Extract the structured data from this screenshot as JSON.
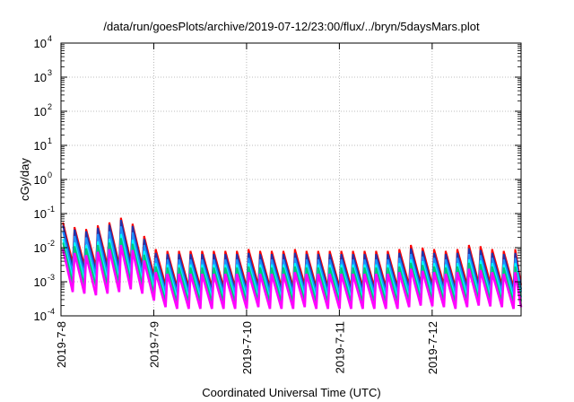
{
  "chart_data": {
    "type": "line",
    "title": "/data/run/goesPlots/archive/2019-07-12/23:00/flux/../bryn/5daysMars.plot",
    "xlabel": "Coordinated Universal Time (UTC)",
    "ylabel": "cGy/day",
    "xscale": "time",
    "yscale": "log",
    "xlim": [
      "2019-07-08T00:00",
      "2019-07-12T23:00"
    ],
    "ylim": [
      0.0001,
      10000
    ],
    "grid": true,
    "legend": "none",
    "x_ticks": [
      {
        "date": "2019-07-08",
        "label": "2019-7-8"
      },
      {
        "date": "2019-07-09",
        "label": "2019-7-9"
      },
      {
        "date": "2019-07-10",
        "label": "2019-7-10"
      },
      {
        "date": "2019-07-11",
        "label": "2019-7-11"
      },
      {
        "date": "2019-07-12",
        "label": "2019-7-12"
      }
    ],
    "y_ticks": [
      {
        "value": 0.0001,
        "base": "10",
        "exp": "-4"
      },
      {
        "value": 0.001,
        "base": "10",
        "exp": "-3"
      },
      {
        "value": 0.01,
        "base": "10",
        "exp": "-2"
      },
      {
        "value": 0.1,
        "base": "10",
        "exp": "-1"
      },
      {
        "value": 1,
        "base": "10",
        "exp": "0"
      },
      {
        "value": 10,
        "base": "10",
        "exp": "1"
      },
      {
        "value": 100,
        "base": "10",
        "exp": "2"
      },
      {
        "value": 1000,
        "base": "10",
        "exp": "3"
      },
      {
        "value": 10000,
        "base": "10",
        "exp": "4"
      }
    ],
    "cycle_hours": 3,
    "cycle_peak_times": [
      "2019-07-08T00:30",
      "2019-07-08T03:30",
      "2019-07-08T06:30",
      "2019-07-08T09:30",
      "2019-07-08T12:30",
      "2019-07-08T15:30",
      "2019-07-08T18:30",
      "2019-07-08T21:30",
      "2019-07-09T00:30",
      "2019-07-09T03:30",
      "2019-07-09T06:30",
      "2019-07-09T09:30",
      "2019-07-09T12:30",
      "2019-07-09T15:30",
      "2019-07-09T18:30",
      "2019-07-09T21:30",
      "2019-07-10T00:30",
      "2019-07-10T03:30",
      "2019-07-10T06:30",
      "2019-07-10T09:30",
      "2019-07-10T12:30",
      "2019-07-10T15:30",
      "2019-07-10T18:30",
      "2019-07-10T21:30",
      "2019-07-11T00:30",
      "2019-07-11T03:30",
      "2019-07-11T06:30",
      "2019-07-11T09:30",
      "2019-07-11T12:30",
      "2019-07-11T15:30",
      "2019-07-11T18:30",
      "2019-07-11T21:30",
      "2019-07-12T00:30",
      "2019-07-12T03:30",
      "2019-07-12T06:30",
      "2019-07-12T09:30",
      "2019-07-12T12:30",
      "2019-07-12T15:30",
      "2019-07-12T18:30",
      "2019-07-12T21:30"
    ],
    "series": [
      {
        "color": "#ff0000",
        "peak": [
          0.055,
          0.04,
          0.035,
          0.045,
          0.055,
          0.075,
          0.05,
          0.022,
          0.009,
          0.008,
          0.008,
          0.008,
          0.008,
          0.008,
          0.008,
          0.008,
          0.009,
          0.008,
          0.008,
          0.008,
          0.009,
          0.008,
          0.008,
          0.008,
          0.008,
          0.008,
          0.008,
          0.008,
          0.008,
          0.009,
          0.012,
          0.01,
          0.009,
          0.008,
          0.009,
          0.012,
          0.011,
          0.009,
          0.008,
          0.009
        ],
        "trough": [
          0.0035,
          0.003,
          0.0028,
          0.003,
          0.0032,
          0.004,
          0.003,
          0.0015,
          0.0008,
          0.0007,
          0.0007,
          0.0007,
          0.0007,
          0.0007,
          0.0007,
          0.0007,
          0.0008,
          0.0007,
          0.0007,
          0.0007,
          0.0008,
          0.0007,
          0.0007,
          0.0007,
          0.0007,
          0.0007,
          0.0007,
          0.0007,
          0.0007,
          0.0008,
          0.0009,
          0.0008,
          0.0008,
          0.0007,
          0.0008,
          0.0009,
          0.0009,
          0.0008,
          0.0007,
          0.0008
        ]
      },
      {
        "color": "#2233aa",
        "peak": [
          0.045,
          0.034,
          0.03,
          0.038,
          0.047,
          0.065,
          0.043,
          0.018,
          0.007,
          0.0065,
          0.0065,
          0.0065,
          0.0065,
          0.0065,
          0.0065,
          0.0065,
          0.007,
          0.0065,
          0.0065,
          0.0065,
          0.007,
          0.0065,
          0.0065,
          0.0065,
          0.0065,
          0.0065,
          0.0065,
          0.0065,
          0.0065,
          0.007,
          0.0095,
          0.008,
          0.007,
          0.0065,
          0.007,
          0.0095,
          0.0085,
          0.007,
          0.0065,
          0.007
        ],
        "trough": [
          0.0025,
          0.0022,
          0.002,
          0.0022,
          0.0024,
          0.003,
          0.0022,
          0.0011,
          0.0006,
          0.00055,
          0.00055,
          0.00055,
          0.00055,
          0.00055,
          0.00055,
          0.00055,
          0.0006,
          0.00055,
          0.00055,
          0.00055,
          0.0006,
          0.00055,
          0.00055,
          0.00055,
          0.00055,
          0.00055,
          0.00055,
          0.00055,
          0.00055,
          0.0006,
          0.0007,
          0.0006,
          0.0006,
          0.00055,
          0.0006,
          0.0007,
          0.00065,
          0.0006,
          0.00055,
          0.0006
        ]
      },
      {
        "color": "#1e90ff",
        "peak": [
          0.03,
          0.022,
          0.02,
          0.025,
          0.03,
          0.042,
          0.028,
          0.012,
          0.005,
          0.0045,
          0.0045,
          0.0045,
          0.0045,
          0.0045,
          0.0045,
          0.0045,
          0.005,
          0.0045,
          0.0045,
          0.0045,
          0.005,
          0.0045,
          0.0045,
          0.0045,
          0.0045,
          0.0045,
          0.0045,
          0.0045,
          0.0045,
          0.005,
          0.0065,
          0.0055,
          0.005,
          0.0045,
          0.005,
          0.0065,
          0.006,
          0.005,
          0.0045,
          0.005
        ],
        "trough": [
          0.0018,
          0.0016,
          0.0015,
          0.0016,
          0.0017,
          0.002,
          0.0016,
          0.0009,
          0.0005,
          0.00045,
          0.00045,
          0.00045,
          0.00045,
          0.00045,
          0.00045,
          0.00045,
          0.0005,
          0.00045,
          0.00045,
          0.00045,
          0.0005,
          0.00045,
          0.00045,
          0.00045,
          0.00045,
          0.00045,
          0.00045,
          0.00045,
          0.00045,
          0.0005,
          0.00055,
          0.0005,
          0.0005,
          0.00045,
          0.0005,
          0.00055,
          0.00052,
          0.0005,
          0.00045,
          0.0005
        ]
      },
      {
        "color": "#00ffff",
        "peak": [
          0.018,
          0.014,
          0.012,
          0.015,
          0.018,
          0.025,
          0.017,
          0.008,
          0.0035,
          0.0032,
          0.0032,
          0.0032,
          0.0032,
          0.0032,
          0.0032,
          0.0032,
          0.0035,
          0.0032,
          0.0032,
          0.0032,
          0.0035,
          0.0032,
          0.0032,
          0.0032,
          0.0032,
          0.0032,
          0.0032,
          0.0032,
          0.0032,
          0.0035,
          0.0045,
          0.004,
          0.0035,
          0.0032,
          0.0035,
          0.0045,
          0.0042,
          0.0035,
          0.0032,
          0.0035
        ],
        "trough": [
          0.0012,
          0.0011,
          0.001,
          0.0011,
          0.0012,
          0.0014,
          0.0011,
          0.0006,
          0.00035,
          0.00032,
          0.00032,
          0.00032,
          0.00032,
          0.00032,
          0.00032,
          0.00032,
          0.00035,
          0.00032,
          0.00032,
          0.00032,
          0.00035,
          0.00032,
          0.00032,
          0.00032,
          0.00032,
          0.00032,
          0.00032,
          0.00032,
          0.00032,
          0.00035,
          0.0004,
          0.00036,
          0.00035,
          0.00032,
          0.00035,
          0.0004,
          0.00038,
          0.00035,
          0.00032,
          0.00035
        ]
      },
      {
        "color": "#00c878",
        "peak": [
          0.014,
          0.011,
          0.0095,
          0.012,
          0.014,
          0.019,
          0.013,
          0.0062,
          0.0028,
          0.0026,
          0.0026,
          0.0026,
          0.0026,
          0.0026,
          0.0026,
          0.0026,
          0.0028,
          0.0026,
          0.0026,
          0.0026,
          0.0028,
          0.0026,
          0.0026,
          0.0026,
          0.0026,
          0.0026,
          0.0026,
          0.0026,
          0.0026,
          0.0028,
          0.0036,
          0.0031,
          0.0028,
          0.0026,
          0.0028,
          0.0036,
          0.0033,
          0.0028,
          0.0026,
          0.0028
        ],
        "trough": [
          0.0009,
          0.0008,
          0.00075,
          0.0008,
          0.0009,
          0.001,
          0.0008,
          0.00045,
          0.00027,
          0.00025,
          0.00025,
          0.00025,
          0.00025,
          0.00025,
          0.00025,
          0.00025,
          0.00027,
          0.00025,
          0.00025,
          0.00025,
          0.00027,
          0.00025,
          0.00025,
          0.00025,
          0.00025,
          0.00025,
          0.00025,
          0.00025,
          0.00025,
          0.00027,
          0.0003,
          0.00028,
          0.00027,
          0.00025,
          0.00027,
          0.0003,
          0.00029,
          0.00027,
          0.00025,
          0.00027
        ]
      },
      {
        "color": "#ff00ff",
        "peak": [
          0.009,
          0.007,
          0.006,
          0.0075,
          0.009,
          0.012,
          0.0085,
          0.0042,
          0.0019,
          0.0017,
          0.0017,
          0.0017,
          0.0017,
          0.0017,
          0.0017,
          0.0017,
          0.0019,
          0.0017,
          0.0017,
          0.0017,
          0.0019,
          0.0017,
          0.0017,
          0.0017,
          0.0017,
          0.0017,
          0.0017,
          0.0017,
          0.0017,
          0.0019,
          0.0024,
          0.0021,
          0.0019,
          0.0017,
          0.0019,
          0.0024,
          0.0022,
          0.0019,
          0.0017,
          0.0019
        ],
        "trough": [
          0.0005,
          0.00045,
          0.0004,
          0.00045,
          0.0005,
          0.0006,
          0.00045,
          0.00028,
          0.00018,
          0.00016,
          0.00016,
          0.00016,
          0.00016,
          0.00016,
          0.00016,
          0.00016,
          0.00018,
          0.00016,
          0.00016,
          0.00016,
          0.00018,
          0.00016,
          0.00016,
          0.00016,
          0.00016,
          0.00016,
          0.00016,
          0.00016,
          0.00016,
          0.00018,
          0.0002,
          0.00019,
          0.00018,
          0.00016,
          0.00018,
          0.0002,
          0.00019,
          0.00018,
          0.00016,
          0.00018
        ]
      }
    ]
  }
}
